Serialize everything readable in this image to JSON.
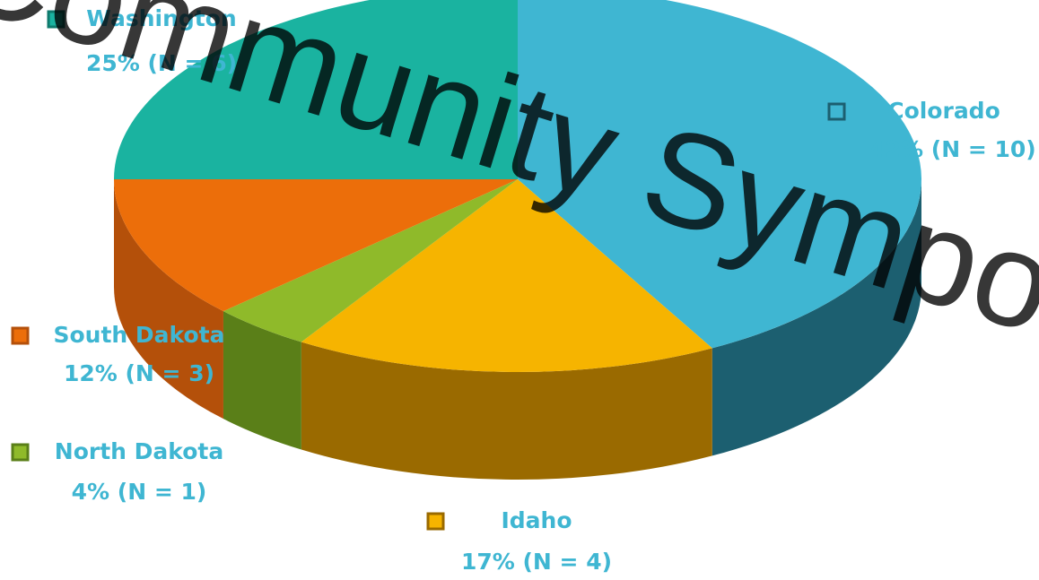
{
  "chart_data": {
    "type": "pie",
    "watermark": "Community Sympo",
    "categories": [
      "Colorado",
      "Idaho",
      "North Dakota",
      "South Dakota",
      "Washington"
    ],
    "values": [
      42,
      17,
      4,
      12,
      25
    ],
    "value_labels": [
      "42% (N = 10)",
      "17% (N = 4)",
      "4% (N = 1)",
      "12% (N = 3)",
      "25% (N = 6)"
    ],
    "colors": [
      "#3fb6d2",
      "#f6b400",
      "#8fba2a",
      "#ec6e0a",
      "#1ab3a0"
    ],
    "side_colors": [
      "#1c5f70",
      "#9a6a00",
      "#5a7f18",
      "#b4500a",
      "#0f7a6d"
    ]
  }
}
